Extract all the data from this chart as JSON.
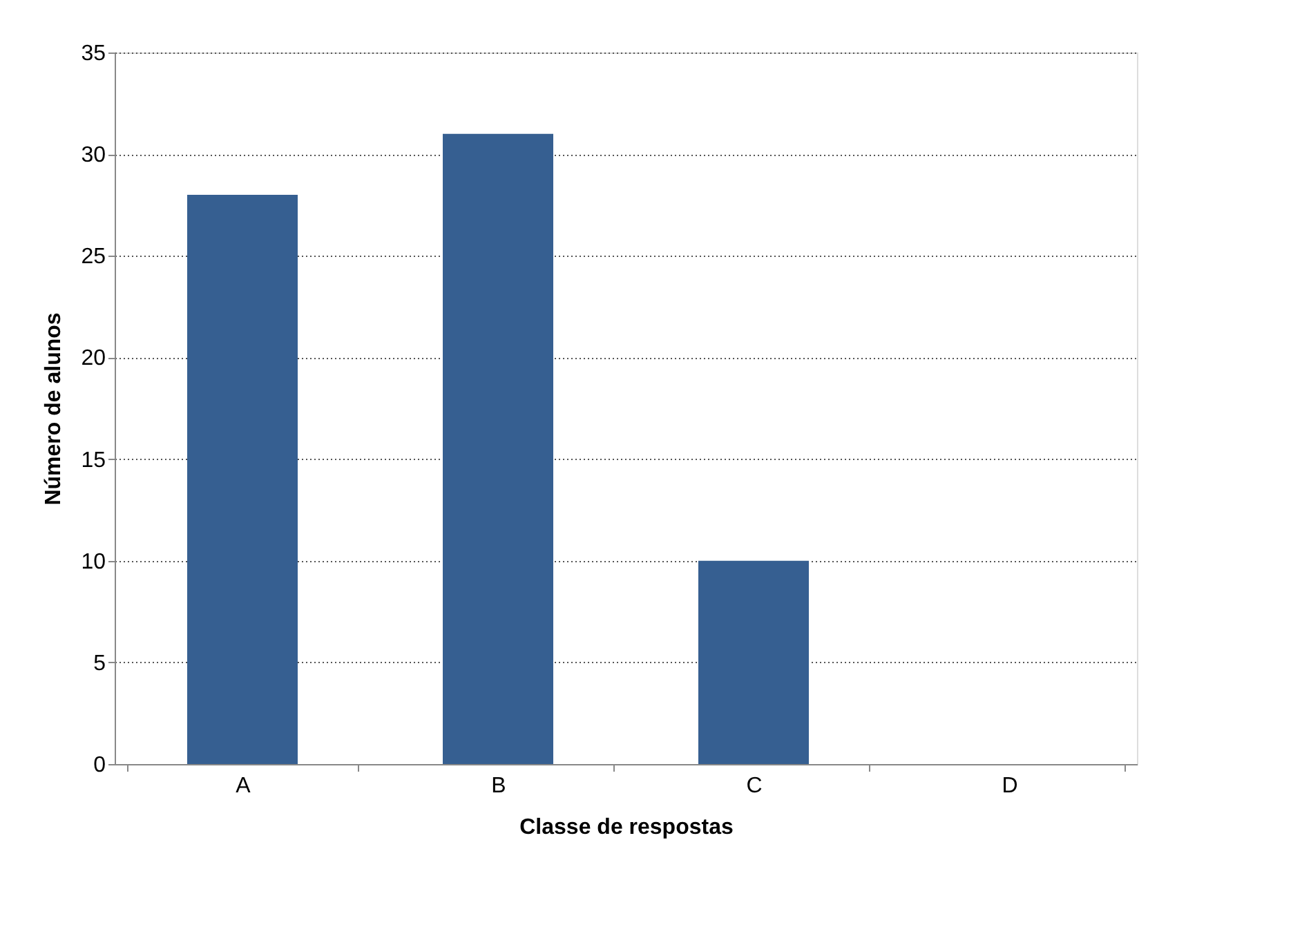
{
  "chart_data": {
    "type": "bar",
    "xlabel": "Classe de respostas",
    "ylabel": "Número de alunos",
    "categories": [
      "A",
      "B",
      "C",
      "D"
    ],
    "values": [
      28,
      31,
      10,
      0
    ],
    "color": "#365f91",
    "ylim": [
      0,
      35
    ],
    "yticks": [
      0,
      5,
      10,
      15,
      20,
      25,
      30,
      35
    ],
    "grid": "y"
  }
}
